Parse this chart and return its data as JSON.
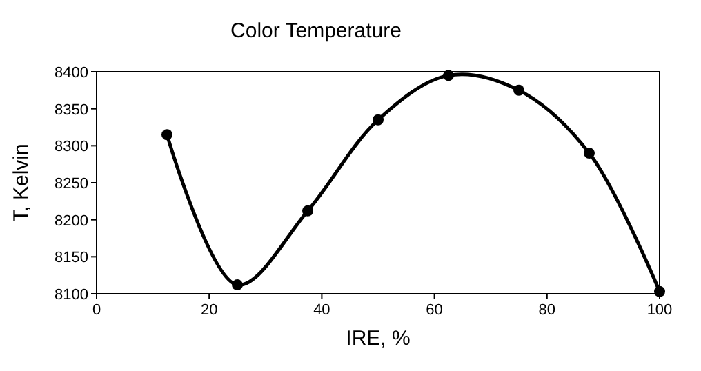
{
  "chart_data": {
    "type": "line",
    "title": "Color Temperature",
    "xlabel": "IRE, %",
    "ylabel": "T, Kelvin",
    "x": [
      12.5,
      25,
      37.5,
      50,
      62.5,
      75,
      87.5,
      100
    ],
    "series": [
      {
        "color": "#000000",
        "values": [
          8315,
          8112,
          8212,
          8335,
          8395,
          8375,
          8290,
          8103
        ]
      }
    ],
    "xlim": [
      0,
      100
    ],
    "xticks": [
      0,
      20,
      40,
      60,
      80,
      100
    ],
    "ylim": [
      8100,
      8400
    ],
    "yticks": [
      8100,
      8150,
      8200,
      8250,
      8300,
      8350,
      8400
    ],
    "marker": "circle",
    "line_style": "solid"
  }
}
